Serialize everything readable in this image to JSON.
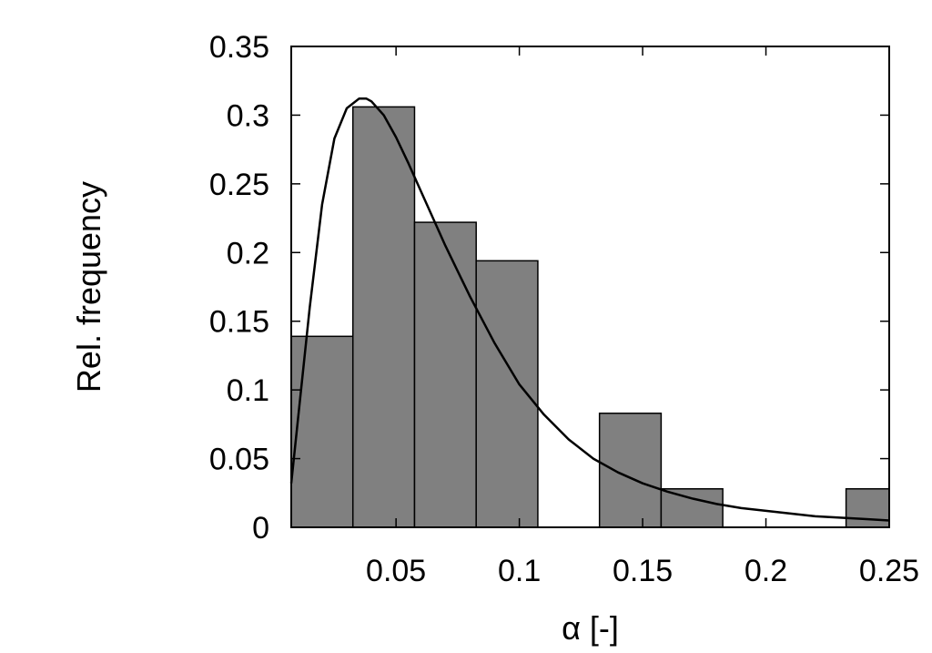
{
  "chart_data": {
    "type": "bar",
    "title": "",
    "xlabel": "α [-]",
    "ylabel": "Rel. frequency",
    "xlim": [
      0.0075,
      0.25
    ],
    "ylim": [
      0,
      0.35
    ],
    "xticks": [
      0.05,
      0.1,
      0.15,
      0.2,
      0.25
    ],
    "xtick_labels": [
      "0.05",
      "0.1",
      "0.15",
      "0.2",
      "0.25"
    ],
    "yticks": [
      0,
      0.05,
      0.1,
      0.15,
      0.2,
      0.25,
      0.3,
      0.35
    ],
    "ytick_labels": [
      "0",
      "0.05",
      "0.1",
      "0.15",
      "0.2",
      "0.25",
      "0.3",
      "0.35"
    ],
    "grid": false,
    "legend": "none",
    "bar_color": "#808080",
    "line_color": "#000000",
    "series": [
      {
        "type": "histogram",
        "bins": [
          {
            "x0": 0.0075,
            "x1": 0.0325,
            "value": 0.139
          },
          {
            "x0": 0.0325,
            "x1": 0.0575,
            "value": 0.306
          },
          {
            "x0": 0.0575,
            "x1": 0.0825,
            "value": 0.222
          },
          {
            "x0": 0.0825,
            "x1": 0.1075,
            "value": 0.194
          },
          {
            "x0": 0.1075,
            "x1": 0.1325,
            "value": 0.0
          },
          {
            "x0": 0.1325,
            "x1": 0.1575,
            "value": 0.083
          },
          {
            "x0": 0.1575,
            "x1": 0.1825,
            "value": 0.028
          },
          {
            "x0": 0.1825,
            "x1": 0.2075,
            "value": 0.0
          },
          {
            "x0": 0.2075,
            "x1": 0.2325,
            "value": 0.0
          },
          {
            "x0": 0.2325,
            "x1": 0.2575,
            "value": 0.028
          }
        ]
      },
      {
        "type": "line",
        "x": [
          0.0075,
          0.01,
          0.015,
          0.02,
          0.025,
          0.03,
          0.035,
          0.038,
          0.04,
          0.045,
          0.05,
          0.055,
          0.06,
          0.065,
          0.07,
          0.08,
          0.09,
          0.1,
          0.11,
          0.12,
          0.13,
          0.14,
          0.15,
          0.16,
          0.17,
          0.18,
          0.19,
          0.2,
          0.21,
          0.22,
          0.23,
          0.24,
          0.25
        ],
        "y": [
          0.032,
          0.075,
          0.16,
          0.235,
          0.283,
          0.305,
          0.312,
          0.312,
          0.31,
          0.3,
          0.284,
          0.265,
          0.245,
          0.225,
          0.205,
          0.168,
          0.134,
          0.104,
          0.082,
          0.064,
          0.05,
          0.04,
          0.032,
          0.026,
          0.021,
          0.017,
          0.014,
          0.012,
          0.01,
          0.008,
          0.007,
          0.006,
          0.005
        ]
      }
    ]
  }
}
